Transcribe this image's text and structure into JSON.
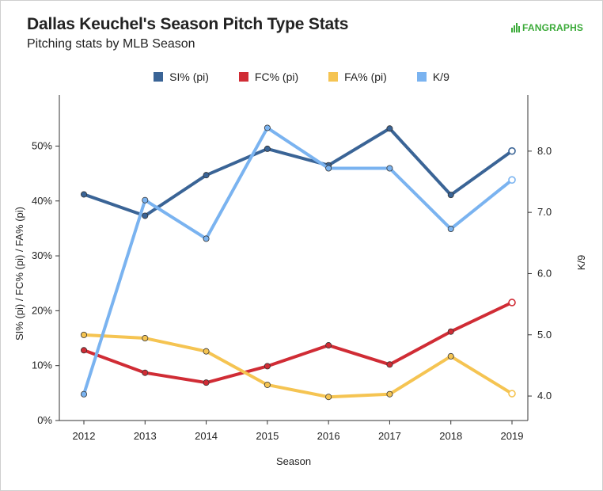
{
  "header": {
    "title": "Dallas Keuchel's Season Pitch Type Stats",
    "subtitle": "Pitching stats by MLB Season",
    "logo_text": "FANGRAPHS"
  },
  "colors": {
    "si": "#3a6496",
    "fc": "#d02c35",
    "fa": "#f5c452",
    "k9": "#7ab3f0",
    "logo": "#3cab3a"
  },
  "chart_data": {
    "type": "line",
    "x": [
      2012,
      2013,
      2014,
      2015,
      2016,
      2017,
      2018,
      2019
    ],
    "xlabel": "Season",
    "ylabel_left": "SI% (pi) / FC% (pi) / FA% (pi)",
    "ylabel_right": "K/9",
    "ylim_left": [
      0,
      58
    ],
    "yticks_left": [
      0,
      10,
      20,
      30,
      40,
      50
    ],
    "ytick_labels_left": [
      "0%",
      "10%",
      "20%",
      "30%",
      "40%",
      "50%"
    ],
    "ylim_right": [
      3.6,
      8.8
    ],
    "yticks_right": [
      4.0,
      5.0,
      6.0,
      7.0,
      8.0
    ],
    "ytick_labels_right": [
      "4.0",
      "5.0",
      "6.0",
      "7.0",
      "8.0"
    ],
    "grid": false,
    "legend_position": "top-center",
    "series": [
      {
        "name": "SI% (pi)",
        "axis": "left",
        "color": "#3a6496",
        "values": [
          41.2,
          37.3,
          44.7,
          49.5,
          46.5,
          53.2,
          41.1,
          49.1
        ]
      },
      {
        "name": "FC% (pi)",
        "axis": "left",
        "color": "#d02c35",
        "values": [
          12.8,
          8.7,
          6.9,
          9.9,
          13.7,
          10.2,
          16.2,
          21.5
        ]
      },
      {
        "name": "FA% (pi)",
        "axis": "left",
        "color": "#f5c452",
        "values": [
          15.6,
          15.0,
          12.6,
          6.5,
          4.3,
          4.8,
          11.7,
          4.9
        ]
      },
      {
        "name": "K/9",
        "axis": "right",
        "color": "#7ab3f0",
        "values": [
          4.03,
          7.2,
          6.57,
          8.38,
          7.72,
          7.72,
          6.73,
          7.53
        ]
      }
    ]
  }
}
